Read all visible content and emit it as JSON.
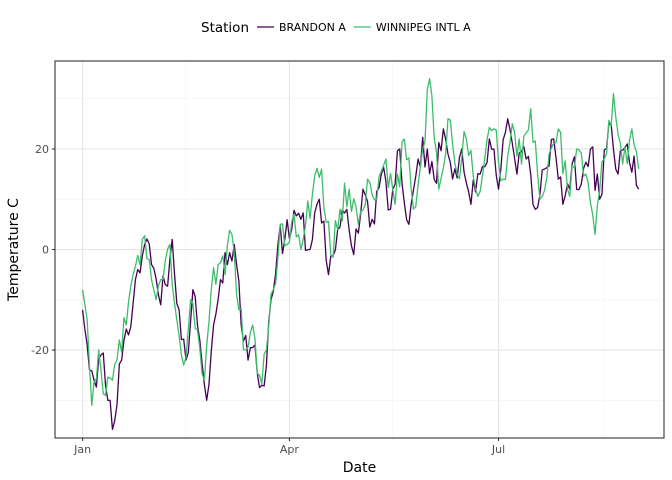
{
  "chart_data": {
    "type": "line",
    "xlabel": "Date",
    "ylabel": "Temperature C",
    "x_start": "2023-01-01",
    "x_end": "2023-08-31",
    "xlim": [
      "2022-12-20",
      "2023-09-11"
    ],
    "ylim": [
      -37.5,
      37.5
    ],
    "x_ticks": [
      {
        "date": "2023-01-01",
        "label": "Jan"
      },
      {
        "date": "2023-04-01",
        "label": "Apr"
      },
      {
        "date": "2023-07-01",
        "label": "Jul"
      }
    ],
    "x_minor_ticks": [
      "2023-02-15",
      "2023-05-16",
      "2023-08-16"
    ],
    "y_ticks": [
      -20,
      0,
      20
    ],
    "y_minor_ticks": [
      -30,
      -10,
      10,
      30
    ],
    "grid": true,
    "legend": {
      "title": "Station",
      "position": "top"
    },
    "series": [
      {
        "name": "BRANDON A",
        "color": "#440154",
        "anchors": [
          [
            "2023-01-01",
            -12
          ],
          [
            "2023-01-03",
            -19
          ],
          [
            "2023-01-06",
            -26
          ],
          [
            "2023-01-09",
            -21
          ],
          [
            "2023-01-12",
            -30
          ],
          [
            "2023-01-15",
            -34
          ],
          [
            "2023-01-18",
            -22
          ],
          [
            "2023-01-21",
            -17
          ],
          [
            "2023-01-24",
            -6
          ],
          [
            "2023-01-28",
            1
          ],
          [
            "2023-01-31",
            -3
          ],
          [
            "2023-02-03",
            -9
          ],
          [
            "2023-02-06",
            -7
          ],
          [
            "2023-02-09",
            2
          ],
          [
            "2023-02-12",
            -12
          ],
          [
            "2023-02-15",
            -22
          ],
          [
            "2023-02-18",
            -8
          ],
          [
            "2023-02-21",
            -18
          ],
          [
            "2023-02-24",
            -30
          ],
          [
            "2023-02-27",
            -15
          ],
          [
            "2023-03-02",
            -6
          ],
          [
            "2023-03-05",
            -3
          ],
          [
            "2023-03-08",
            1
          ],
          [
            "2023-03-11",
            -15
          ],
          [
            "2023-03-14",
            -22
          ],
          [
            "2023-03-17",
            -19
          ],
          [
            "2023-03-20",
            -27
          ],
          [
            "2023-03-22",
            -23
          ],
          [
            "2023-03-24",
            -10
          ],
          [
            "2023-03-27",
            1
          ],
          [
            "2023-03-30",
            2
          ],
          [
            "2023-04-02",
            4
          ],
          [
            "2023-04-06",
            6
          ],
          [
            "2023-04-10",
            0
          ],
          [
            "2023-04-14",
            10
          ],
          [
            "2023-04-18",
            -5
          ],
          [
            "2023-04-22",
            4
          ],
          [
            "2023-04-26",
            8
          ],
          [
            "2023-04-29",
            -1
          ],
          [
            "2023-05-03",
            12
          ],
          [
            "2023-05-07",
            6
          ],
          [
            "2023-05-11",
            15
          ],
          [
            "2023-05-15",
            8
          ],
          [
            "2023-05-19",
            20
          ],
          [
            "2023-05-23",
            5
          ],
          [
            "2023-05-27",
            18
          ],
          [
            "2023-05-31",
            20
          ],
          [
            "2023-06-03",
            14
          ],
          [
            "2023-06-07",
            24
          ],
          [
            "2023-06-11",
            14
          ],
          [
            "2023-06-15",
            20
          ],
          [
            "2023-06-19",
            9
          ],
          [
            "2023-06-23",
            15
          ],
          [
            "2023-06-27",
            22
          ],
          [
            "2023-07-01",
            12
          ],
          [
            "2023-07-05",
            26
          ],
          [
            "2023-07-09",
            15
          ],
          [
            "2023-07-13",
            18
          ],
          [
            "2023-07-17",
            8
          ],
          [
            "2023-07-21",
            16
          ],
          [
            "2023-07-25",
            22
          ],
          [
            "2023-07-29",
            9
          ],
          [
            "2023-08-02",
            17
          ],
          [
            "2023-08-06",
            13
          ],
          [
            "2023-08-10",
            20
          ],
          [
            "2023-08-14",
            10
          ],
          [
            "2023-08-18",
            25
          ],
          [
            "2023-08-22",
            15
          ],
          [
            "2023-08-26",
            21
          ],
          [
            "2023-08-31",
            12
          ]
        ]
      },
      {
        "name": "WINNIPEG INTL A",
        "color": "#3dbc6b",
        "anchors": [
          [
            "2023-01-01",
            -8
          ],
          [
            "2023-01-03",
            -14
          ],
          [
            "2023-01-05",
            -31
          ],
          [
            "2023-01-08",
            -20
          ],
          [
            "2023-01-11",
            -29
          ],
          [
            "2023-01-14",
            -26
          ],
          [
            "2023-01-17",
            -18
          ],
          [
            "2023-01-20",
            -15
          ],
          [
            "2023-01-23",
            -5
          ],
          [
            "2023-01-27",
            2
          ],
          [
            "2023-01-30",
            -2
          ],
          [
            "2023-02-02",
            -10
          ],
          [
            "2023-02-05",
            -6
          ],
          [
            "2023-02-08",
            1
          ],
          [
            "2023-02-11",
            -14
          ],
          [
            "2023-02-14",
            -23
          ],
          [
            "2023-02-17",
            -10
          ],
          [
            "2023-02-20",
            -16
          ],
          [
            "2023-02-23",
            -26
          ],
          [
            "2023-02-26",
            -8
          ],
          [
            "2023-03-01",
            -3
          ],
          [
            "2023-03-04",
            -5
          ],
          [
            "2023-03-07",
            3
          ],
          [
            "2023-03-10",
            -12
          ],
          [
            "2023-03-13",
            -20
          ],
          [
            "2023-03-16",
            -15
          ],
          [
            "2023-03-19",
            -25
          ],
          [
            "2023-03-22",
            -20
          ],
          [
            "2023-03-25",
            -8
          ],
          [
            "2023-03-28",
            5
          ],
          [
            "2023-03-31",
            1
          ],
          [
            "2023-04-03",
            7
          ],
          [
            "2023-04-07",
            2
          ],
          [
            "2023-04-11",
            11
          ],
          [
            "2023-04-15",
            16
          ],
          [
            "2023-04-19",
            -1
          ],
          [
            "2023-04-23",
            8
          ],
          [
            "2023-04-27",
            12
          ],
          [
            "2023-05-01",
            5
          ],
          [
            "2023-05-05",
            14
          ],
          [
            "2023-05-09",
            10
          ],
          [
            "2023-05-13",
            18
          ],
          [
            "2023-05-17",
            9
          ],
          [
            "2023-05-21",
            22
          ],
          [
            "2023-05-25",
            8
          ],
          [
            "2023-05-29",
            20
          ],
          [
            "2023-06-01",
            34
          ],
          [
            "2023-06-05",
            12
          ],
          [
            "2023-06-09",
            26
          ],
          [
            "2023-06-13",
            15
          ],
          [
            "2023-06-17",
            22
          ],
          [
            "2023-06-21",
            12
          ],
          [
            "2023-06-25",
            18
          ],
          [
            "2023-06-29",
            24
          ],
          [
            "2023-07-03",
            14
          ],
          [
            "2023-07-07",
            25
          ],
          [
            "2023-07-11",
            17
          ],
          [
            "2023-07-15",
            28
          ],
          [
            "2023-07-19",
            10
          ],
          [
            "2023-07-23",
            19
          ],
          [
            "2023-07-27",
            24
          ],
          [
            "2023-07-31",
            12
          ],
          [
            "2023-08-04",
            20
          ],
          [
            "2023-08-08",
            15
          ],
          [
            "2023-08-12",
            3
          ],
          [
            "2023-08-16",
            18
          ],
          [
            "2023-08-20",
            31
          ],
          [
            "2023-08-24",
            17
          ],
          [
            "2023-08-28",
            24
          ],
          [
            "2023-08-31",
            16
          ]
        ]
      }
    ]
  }
}
